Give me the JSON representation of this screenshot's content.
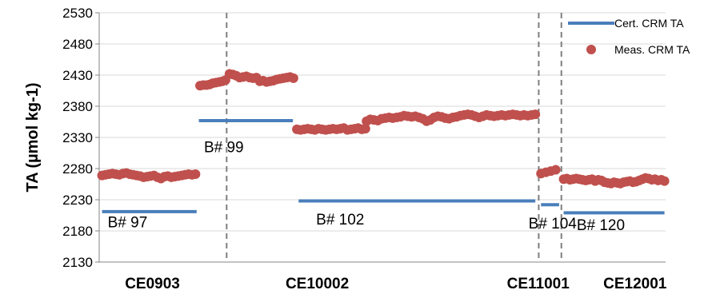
{
  "chart_data": {
    "type": "scatter",
    "ylabel": "TA (µmol kg-1)",
    "ylim": [
      2130,
      2530
    ],
    "yticks": [
      2130,
      2180,
      2230,
      2280,
      2330,
      2380,
      2430,
      2480,
      2530
    ],
    "ytick_labels": [
      "2130",
      "2180",
      "2230",
      "2280",
      "2330",
      "2380",
      "2430",
      "2480",
      "2530"
    ],
    "xlim": [
      0,
      100
    ],
    "grid": "horizontal",
    "legend_position": "top-right",
    "legend": [
      {
        "label": "Cert. CRM TA",
        "marker": "line",
        "color": "#4a7ebb"
      },
      {
        "label": "Meas. CRM TA",
        "marker": "circle",
        "color": "#c0504d"
      }
    ],
    "cruises": [
      {
        "label": "CE0903",
        "x": 9.4
      },
      {
        "label": "CE10002",
        "x": 38.5
      },
      {
        "label": "CE11001",
        "x": 77.5
      },
      {
        "label": "CE12001",
        "x": 94.6
      }
    ],
    "dividers": [
      22.5,
      77.6,
      81.6
    ],
    "certified": [
      {
        "batch": "B# 97",
        "value": 2211,
        "x_start": 0.5,
        "x_end": 17.2,
        "label_x": 1.5,
        "label_y": 2195
      },
      {
        "batch": "B# 99",
        "value": 2357,
        "x_start": 17.6,
        "x_end": 34.2,
        "label_x": 18.5,
        "label_y": 2315
      },
      {
        "batch": "B# 102",
        "value": 2228,
        "x_start": 35.2,
        "x_end": 77.0,
        "label_x": 38.3,
        "label_y": 2199
      },
      {
        "batch": "B# 104",
        "value": 2222,
        "x_start": 78.0,
        "x_end": 81.2,
        "label_x": 75.8,
        "label_y": 2193
      },
      {
        "batch": "B# 120",
        "value": 2209,
        "x_start": 82.0,
        "x_end": 99.8,
        "label_x": 84.3,
        "label_y": 2190
      }
    ],
    "measured": [
      {
        "batch": "B# 97",
        "x_start": 0.5,
        "x_end": 17.0,
        "values": [
          2269,
          2270,
          2271,
          2272,
          2271,
          2270,
          2272,
          2273,
          2271,
          2270,
          2269,
          2268,
          2266,
          2267,
          2268,
          2269,
          2266,
          2264,
          2267,
          2268,
          2266,
          2267,
          2268,
          2269,
          2270,
          2271,
          2270,
          2271
        ]
      },
      {
        "batch": "B# 99a",
        "x_start": 17.8,
        "x_end": 22.3,
        "values": [
          2413,
          2414,
          2414,
          2415,
          2417,
          2418,
          2419,
          2420,
          2422
        ]
      },
      {
        "batch": "B# 99b",
        "x_start": 23.0,
        "x_end": 34.3,
        "values": [
          2432,
          2431,
          2429,
          2426,
          2427,
          2428,
          2426,
          2425,
          2426,
          2420,
          2421,
          2419,
          2420,
          2421,
          2423,
          2424,
          2425,
          2426,
          2427,
          2425
        ]
      },
      {
        "batch": "B# 102a",
        "x_start": 34.9,
        "x_end": 47.0,
        "values": [
          2343,
          2342,
          2343,
          2344,
          2343,
          2342,
          2344,
          2343,
          2342,
          2343,
          2344,
          2343,
          2344,
          2345,
          2342,
          2343,
          2344,
          2345,
          2343,
          2344
        ]
      },
      {
        "batch": "B# 102b",
        "x_start": 47.2,
        "x_end": 77.0,
        "values": [
          2356,
          2359,
          2358,
          2357,
          2360,
          2361,
          2362,
          2361,
          2362,
          2363,
          2365,
          2364,
          2363,
          2364,
          2362,
          2360,
          2356,
          2358,
          2362,
          2364,
          2363,
          2361,
          2360,
          2362,
          2363,
          2365,
          2366,
          2367,
          2366,
          2364,
          2362,
          2364,
          2366,
          2365,
          2364,
          2365,
          2366,
          2365,
          2366,
          2367,
          2366,
          2365,
          2366,
          2365,
          2366,
          2367
        ]
      },
      {
        "batch": "B# 104",
        "x_start": 78.0,
        "x_end": 80.6,
        "values": [
          2272,
          2274,
          2276,
          2278
        ]
      },
      {
        "batch": "B# 120",
        "x_start": 82.0,
        "x_end": 99.8,
        "values": [
          2263,
          2264,
          2262,
          2263,
          2264,
          2263,
          2262,
          2261,
          2262,
          2263,
          2260,
          2262,
          2261,
          2258,
          2257,
          2256,
          2258,
          2257,
          2256,
          2258,
          2259,
          2260,
          2258,
          2259,
          2261,
          2263,
          2265,
          2264,
          2262,
          2263,
          2261,
          2262,
          2260
        ]
      }
    ]
  }
}
